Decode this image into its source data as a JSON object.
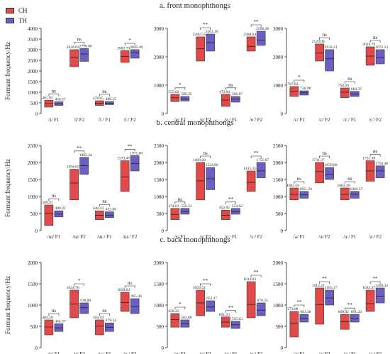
{
  "legend": [
    {
      "name": "CH",
      "color": "#e24a4a"
    },
    {
      "name": "TH",
      "color": "#6a5fc2"
    }
  ],
  "y_axis_label": "Formant frequency/Hz",
  "sections": [
    {
      "title": "a. front monophthongs"
    },
    {
      "title": "b. central monophthongs"
    },
    {
      "title": "c. back monophthongs"
    }
  ],
  "chart_data": [
    {
      "type": "box",
      "section": "a. front monophthongs",
      "ylabel": "Formant frequency/Hz",
      "ylim": [
        0,
        4000
      ],
      "yticks": [
        0,
        500,
        1000,
        1500,
        2000,
        2500,
        3000,
        3500,
        4000
      ],
      "categories": [
        "/i/ F1",
        "/i/ F2",
        "/iː/ F1",
        "/iː/ F2"
      ],
      "annotations": [
        "ns",
        "ns",
        "ns",
        "*"
      ],
      "series": [
        {
          "name": "CH",
          "values": [
            462.92,
            2638.03,
            478.05,
            2682.7
          ],
          "box_low": [
            300,
            2200,
            380,
            2400
          ],
          "box_high": [
            620,
            3000,
            600,
            2950
          ]
        },
        {
          "name": "TH",
          "values": [
            456.37,
            2798.0,
            480.25,
            2845.46
          ],
          "box_low": [
            380,
            2450,
            420,
            2600
          ],
          "box_high": [
            550,
            3050,
            560,
            3000
          ]
        }
      ]
    },
    {
      "type": "box",
      "section": "a. front monophthongs",
      "ylim": [
        0,
        3000
      ],
      "yticks": [
        0,
        1000,
        2000,
        3000
      ],
      "categories": [
        "/e/ F1",
        "/e/ F2",
        "/eː/ F1",
        "/eː/ F2"
      ],
      "annotations": [
        "*",
        "**",
        "ns",
        "**"
      ],
      "series": [
        {
          "name": "CH",
          "values": [
            555.02,
            2280.55,
            473.84,
            2368.64
          ],
          "box_low": [
            420,
            1850,
            250,
            2200
          ],
          "box_high": [
            680,
            2700,
            680,
            2700
          ]
        },
        {
          "name": "TH",
          "values": [
            506.35,
            2501.1,
            506.87,
            2590.28
          ],
          "box_low": [
            440,
            2200,
            400,
            2400
          ],
          "box_high": [
            600,
            2800,
            600,
            2900
          ]
        }
      ]
    },
    {
      "type": "box",
      "section": "a. front monophthongs",
      "ylim": [
        0,
        3000
      ],
      "yticks": [
        0,
        1000,
        2000,
        3000
      ],
      "categories": [
        "/ɛ/ F1",
        "/ɛ/ F2",
        "/ɛː/ F1",
        "/ɛː/ F2"
      ],
      "annotations": [
        "*",
        "ns",
        "ns",
        "ns"
      ],
      "series": [
        {
          "name": "CH",
          "values": [
            787.83,
            2129.08,
            750.26,
            2024.7
          ],
          "box_low": [
            600,
            1850,
            560,
            1700
          ],
          "box_high": [
            950,
            2450,
            900,
            2350
          ]
        },
        {
          "name": "TH",
          "values": [
            728.98,
            1932.21,
            684.37,
            1972.13
          ],
          "box_low": [
            650,
            1500,
            600,
            1750
          ],
          "box_high": [
            800,
            2250,
            780,
            2250
          ]
        }
      ]
    },
    {
      "type": "box",
      "section": "b. central monophthongs",
      "ylabel": "Formant frequency/Hz",
      "ylim": [
        0,
        2500
      ],
      "yticks": [
        0,
        500,
        1000,
        1500,
        2000,
        2500
      ],
      "categories": [
        "/ɯ/ F1",
        "/ɯ/ F2",
        "/ɯː/ F1",
        "/ɯː/ F2"
      ],
      "annotations": [
        "ns",
        "**",
        "ns",
        "**"
      ],
      "series": [
        {
          "name": "CH",
          "values": [
            509.91,
            1394.63,
            446.43,
            1573.47
          ],
          "box_low": [
            150,
            900,
            320,
            1150
          ],
          "box_high": [
            750,
            1800,
            580,
            2050
          ]
        },
        {
          "name": "TH",
          "values": [
            480.95,
            1905.34,
            453.08,
            1971.6
          ],
          "box_low": [
            400,
            1650,
            380,
            1750
          ],
          "box_high": [
            580,
            2150,
            550,
            2200
          ]
        }
      ]
    },
    {
      "type": "box",
      "section": "b. central monophthongs",
      "ylim": [
        0,
        2500
      ],
      "yticks": [
        0,
        500,
        1000,
        1500,
        2000,
        2500
      ],
      "categories": [
        "/ɤ/ F1",
        "/ɤ/ F2",
        "/ɤː/ F1",
        "/ɤː/ F2"
      ],
      "annotations": [
        "ns",
        "ns",
        "**",
        "**"
      ],
      "series": [
        {
          "name": "CH",
          "values": [
            474.03,
            1460.2,
            452.05,
            1415.35
          ],
          "box_low": [
            320,
            900,
            320,
            1150
          ],
          "box_high": [
            650,
            2000,
            600,
            1750
          ]
        },
        {
          "name": "TH",
          "values": [
            556.22,
            1524.86,
            554.62,
            1751.67
          ],
          "box_low": [
            480,
            1200,
            480,
            1550
          ],
          "box_high": [
            650,
            1850,
            650,
            2000
          ]
        }
      ]
    },
    {
      "type": "box",
      "section": "b. central monophthongs",
      "ylim": [
        0,
        2500
      ],
      "yticks": [
        0,
        500,
        1000,
        1500,
        2000,
        2500
      ],
      "categories": [
        "/ə/ F1",
        "/ə/ F2",
        "/əː/ F1",
        "/əː/ F2"
      ],
      "annotations": [
        "ns",
        "ns",
        "ns",
        "ns"
      ],
      "series": [
        {
          "name": "CH",
          "values": [
            1063.59,
            1731.37,
            1063.39,
            1751.38
          ],
          "box_low": [
            900,
            1400,
            900,
            1450
          ],
          "box_high": [
            1250,
            2000,
            1250,
            2050
          ]
        },
        {
          "name": "TH",
          "values": [
            1051.24,
            1658.8,
            1064.57,
            1750.46
          ],
          "box_low": [
            950,
            1500,
            950,
            1550
          ],
          "box_high": [
            1150,
            1850,
            1150,
            1900
          ]
        }
      ]
    },
    {
      "type": "box",
      "section": "c. back monophthongs",
      "ylabel": "Formant frequency/Hz",
      "ylim": [
        0,
        2000
      ],
      "yticks": [
        0,
        500,
        1000,
        1500,
        2000
      ],
      "categories": [
        "/u/ F1",
        "/u/ F2",
        "/uː/ F1",
        "/uː/ F2"
      ],
      "annotations": [
        "ns",
        "*",
        "ns",
        "ns"
      ],
      "series": [
        {
          "name": "CH",
          "values": [
            484.59,
            1024.7,
            504.59,
            1058.03
          ],
          "box_low": [
            300,
            700,
            300,
            850
          ],
          "box_high": [
            650,
            1350,
            650,
            1300
          ]
        },
        {
          "name": "TH",
          "values": [
            464.37,
            938.8,
            479.24,
            965.46
          ],
          "box_low": [
            380,
            800,
            380,
            800
          ],
          "box_high": [
            560,
            1050,
            580,
            1150
          ]
        }
      ]
    },
    {
      "type": "box",
      "section": "c. back monophthongs",
      "ylim": [
        0,
        2000
      ],
      "yticks": [
        0,
        500,
        1000,
        1500,
        2000
      ],
      "categories": [
        "/o/ F1",
        "/o/ F2",
        "/oː/ F1",
        "/oː/ F2"
      ],
      "annotations": [
        "*",
        "**",
        "**",
        "**"
      ],
      "series": [
        {
          "name": "CH",
          "values": [
            658.25,
            1050.52,
            601.23,
            1014.03
          ],
          "box_low": [
            480,
            750,
            480,
            700
          ],
          "box_high": [
            800,
            1350,
            720,
            1550
          ]
        },
        {
          "name": "TH",
          "values": [
            562.66,
            953.27,
            535.83,
            878.55
          ],
          "box_low": [
            480,
            850,
            450,
            750
          ],
          "box_high": [
            650,
            1100,
            620,
            1050
          ]
        }
      ]
    },
    {
      "type": "box",
      "section": "c. back monophthongs",
      "ylim": [
        0,
        2000
      ],
      "yticks": [
        0,
        500,
        1000,
        1500,
        2000
      ],
      "categories": [
        "/ɔ/ F1",
        "/ɔ/ F2",
        "/ɔː/ F1",
        "/ɔː/ F2"
      ],
      "annotations": [
        "**",
        "**",
        "**",
        "**"
      ],
      "series": [
        {
          "name": "CH",
          "values": [
            573.98,
            1012.21,
            609.02,
            1032.37
          ],
          "box_low": [
            250,
            550,
            430,
            850
          ],
          "box_high": [
            850,
            1400,
            780,
            1350
          ]
        },
        {
          "name": "TH",
          "values": [
            693.38,
            1165.17,
            691.24,
            1209.32
          ],
          "box_low": [
            600,
            1000,
            600,
            1050
          ],
          "box_high": [
            780,
            1350,
            780,
            1400
          ]
        }
      ]
    }
  ]
}
